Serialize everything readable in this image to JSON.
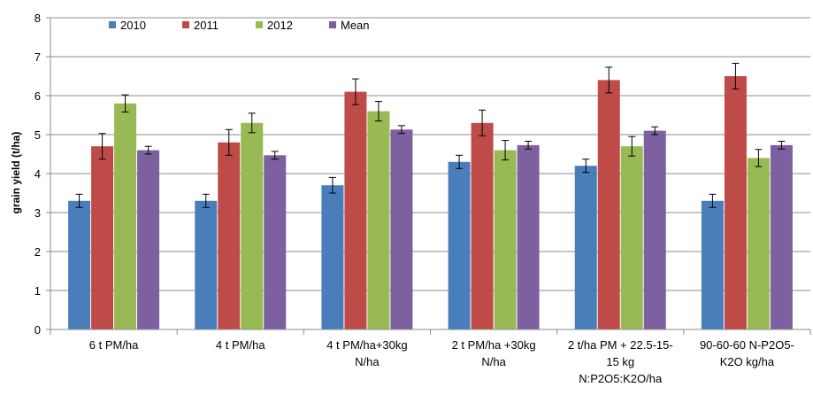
{
  "chart_data": {
    "type": "bar",
    "ylabel": "grain yield (t/ha)",
    "xlabel": "",
    "ylim": [
      0,
      8
    ],
    "yticks": [
      0,
      1,
      2,
      3,
      4,
      5,
      6,
      7,
      8
    ],
    "grid": true,
    "legend_position": "top-left",
    "categories": [
      [
        "6 t PM/ha"
      ],
      [
        "4 t PM/ha"
      ],
      [
        "4 t PM/ha+30kg",
        "N/ha"
      ],
      [
        "2 t PM/ha +30kg",
        "N/ha"
      ],
      [
        "2 t/ha PM + 22.5-15-",
        "15 kg",
        "N:P2O5:K2O/ha"
      ],
      [
        "90-60-60 N-P2O5-",
        "K2O kg/ha"
      ]
    ],
    "series": [
      {
        "name": "2010",
        "color": "#4a7ebb",
        "values": [
          3.3,
          3.3,
          3.7,
          4.3,
          4.2,
          3.3
        ],
        "errors": [
          0.17,
          0.17,
          0.2,
          0.17,
          0.17,
          0.17
        ]
      },
      {
        "name": "2011",
        "color": "#be4b48",
        "values": [
          4.7,
          4.8,
          6.1,
          5.3,
          6.4,
          6.5
        ],
        "errors": [
          0.33,
          0.33,
          0.33,
          0.33,
          0.33,
          0.33
        ]
      },
      {
        "name": "2012",
        "color": "#98b954",
        "values": [
          5.8,
          5.3,
          5.6,
          4.6,
          4.7,
          4.4
        ],
        "errors": [
          0.22,
          0.25,
          0.25,
          0.25,
          0.25,
          0.22
        ]
      },
      {
        "name": "Mean",
        "color": "#7d60a0",
        "values": [
          4.6,
          4.47,
          5.13,
          4.73,
          5.1,
          4.73
        ],
        "errors": [
          0.1,
          0.1,
          0.1,
          0.1,
          0.1,
          0.1
        ]
      }
    ]
  }
}
